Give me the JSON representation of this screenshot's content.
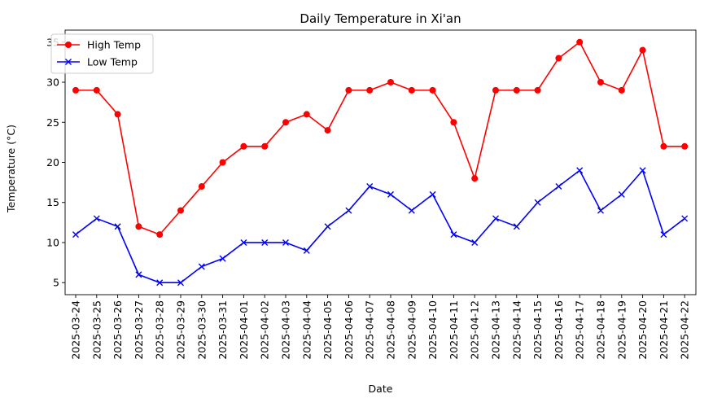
{
  "chart_data": {
    "type": "line",
    "title": "Daily Temperature in Xi'an",
    "xlabel": "Date",
    "ylabel": "Temperature (°C)",
    "categories": [
      "2025-03-24",
      "2025-03-25",
      "2025-03-26",
      "2025-03-27",
      "2025-03-28",
      "2025-03-29",
      "2025-03-30",
      "2025-03-31",
      "2025-04-01",
      "2025-04-02",
      "2025-04-03",
      "2025-04-04",
      "2025-04-05",
      "2025-04-06",
      "2025-04-07",
      "2025-04-08",
      "2025-04-09",
      "2025-04-10",
      "2025-04-11",
      "2025-04-12",
      "2025-04-13",
      "2025-04-14",
      "2025-04-15",
      "2025-04-16",
      "2025-04-17",
      "2025-04-18",
      "2025-04-19",
      "2025-04-20",
      "2025-04-21",
      "2025-04-22"
    ],
    "yticks": [
      5,
      10,
      15,
      20,
      25,
      30,
      35
    ],
    "ylim": [
      3.5,
      36.5
    ],
    "grid": false,
    "legend_position": "upper-left",
    "series": [
      {
        "name": "High Temp",
        "color": "#ff0000",
        "marker": "circle",
        "values": [
          29,
          29,
          26,
          12,
          11,
          14,
          17,
          20,
          22,
          22,
          25,
          26,
          24,
          29,
          29,
          30,
          29,
          29,
          25,
          18,
          29,
          29,
          29,
          33,
          35,
          30,
          29,
          34,
          22,
          22
        ]
      },
      {
        "name": "Low Temp",
        "color": "#0000ff",
        "marker": "x",
        "values": [
          11,
          13,
          12,
          6,
          5,
          5,
          7,
          8,
          10,
          10,
          10,
          9,
          12,
          14,
          17,
          16,
          14,
          16,
          11,
          10,
          13,
          12,
          15,
          17,
          19,
          14,
          16,
          19,
          11,
          13
        ]
      }
    ]
  }
}
